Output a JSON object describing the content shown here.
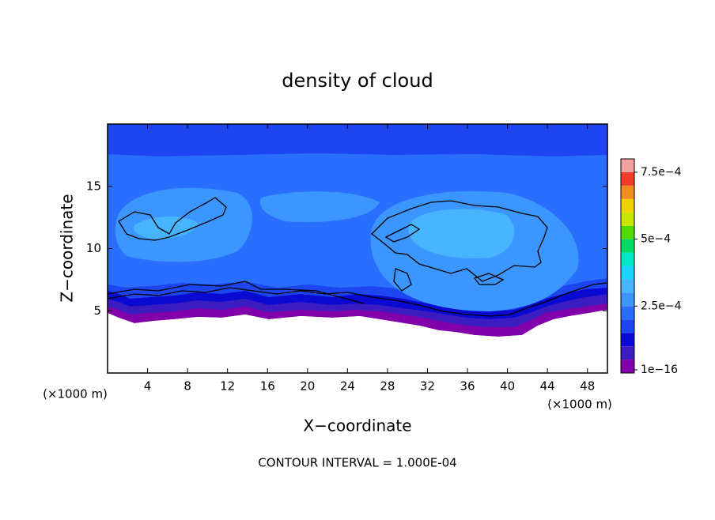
{
  "chart_data": {
    "type": "contour",
    "title": "density of cloud",
    "xlabel": "X−coordinate",
    "ylabel": "Z−coordinate",
    "x_unit_labels": [
      "(×1000 m)",
      "(×1000 m)"
    ],
    "footnote": "CONTOUR INTERVAL = 1.000E-04",
    "xlim": [
      0,
      50
    ],
    "xticks": [
      4,
      8,
      12,
      16,
      20,
      24,
      28,
      32,
      36,
      40,
      44,
      48
    ],
    "ylim": [
      0,
      20
    ],
    "yticks": [
      5,
      10,
      15
    ],
    "colorbar": {
      "levels": [
        0,
        5e-05,
        0.0001,
        0.00015,
        0.0002,
        0.00025,
        0.0003,
        0.00035,
        0.0004,
        0.00045,
        0.0005,
        0.00055,
        0.0006,
        0.00065,
        0.0007,
        0.00075,
        0.0008
      ],
      "colors": [
        "#8200aa",
        "#3a1cc0",
        "#0a0ad2",
        "#1e46f0",
        "#2a6eff",
        "#3c96ff",
        "#46b4ff",
        "#1ed2ff",
        "#00e6c8",
        "#00dc64",
        "#50dc00",
        "#c8e600",
        "#f0d200",
        "#f08c1e",
        "#f03c28",
        "#f5a0a0"
      ],
      "ticks": [
        {
          "value": 0,
          "label": "1e−16"
        },
        {
          "value": 0.00025,
          "label": "2.5e−4"
        },
        {
          "value": 0.0005,
          "label": "5e−4"
        },
        {
          "value": 0.00075,
          "label": "7.5e−4"
        }
      ]
    }
  }
}
